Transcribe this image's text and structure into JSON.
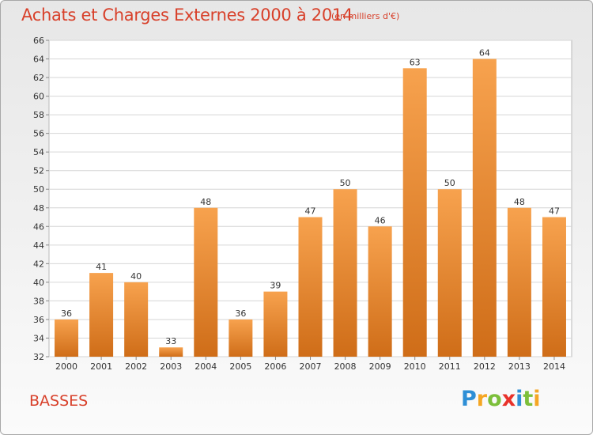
{
  "header": {
    "title": "Achats et Charges Externes 2000 à 2014",
    "subtitle": "(en milliers d'€)"
  },
  "footer": {
    "commune": "BASSES",
    "logo_letters": [
      {
        "ch": "P",
        "color": "#2e8fd6"
      },
      {
        "ch": "r",
        "color": "#f5a623"
      },
      {
        "ch": "o",
        "color": "#7cbf3a"
      },
      {
        "ch": "x",
        "color": "#e8322a"
      },
      {
        "ch": "i",
        "color": "#2e8fd6"
      },
      {
        "ch": "t",
        "color": "#7cbf3a"
      },
      {
        "ch": "i",
        "color": "#f5a623"
      }
    ]
  },
  "chart_data": {
    "type": "bar",
    "title": "Achats et Charges Externes 2000 à 2014",
    "subtitle": "(en milliers d'€)",
    "xlabel": "",
    "ylabel": "",
    "categories": [
      "2000",
      "2001",
      "2002",
      "2003",
      "2004",
      "2005",
      "2006",
      "2007",
      "2008",
      "2009",
      "2010",
      "2011",
      "2012",
      "2013",
      "2014"
    ],
    "values": [
      36,
      41,
      40,
      33,
      48,
      36,
      39,
      47,
      50,
      46,
      63,
      50,
      64,
      48,
      47
    ],
    "ylim": [
      32,
      66
    ],
    "yticks": [
      32,
      34,
      36,
      38,
      40,
      42,
      44,
      46,
      48,
      50,
      52,
      54,
      56,
      58,
      60,
      62,
      64,
      66
    ],
    "grid": true,
    "bar_color_top": "#f7a24e",
    "bar_color_bottom": "#cf6d18"
  }
}
